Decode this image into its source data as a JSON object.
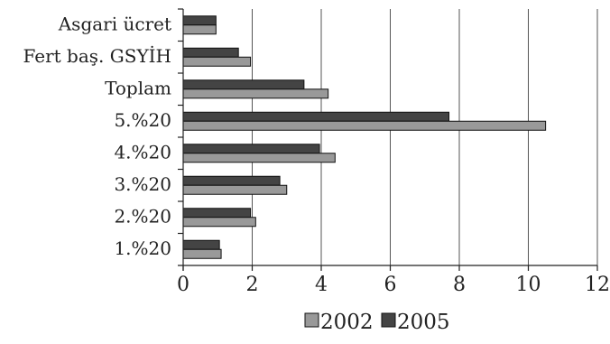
{
  "chart_data": {
    "type": "bar",
    "orientation": "horizontal",
    "categories": [
      "Asgari ücret",
      "Fert baş. GSYİH",
      "Toplam",
      "5.%20",
      "4.%20",
      "3.%20",
      "2.%20",
      "1.%20"
    ],
    "series": [
      {
        "name": "2005",
        "color": "#444444",
        "values": [
          0.95,
          1.6,
          3.5,
          7.7,
          3.95,
          2.8,
          1.95,
          1.05
        ]
      },
      {
        "name": "2002",
        "color": "#999999",
        "values": [
          0.95,
          1.95,
          4.2,
          10.5,
          4.4,
          3.0,
          2.1,
          1.1
        ]
      }
    ],
    "x_ticks": [
      0,
      2,
      4,
      6,
      8,
      10,
      12
    ],
    "xlim": [
      0,
      12
    ],
    "grid": "vertical",
    "legend": {
      "position": "bottom",
      "order": [
        "2002",
        "2005"
      ]
    },
    "title": "",
    "xlabel": "",
    "ylabel": ""
  }
}
